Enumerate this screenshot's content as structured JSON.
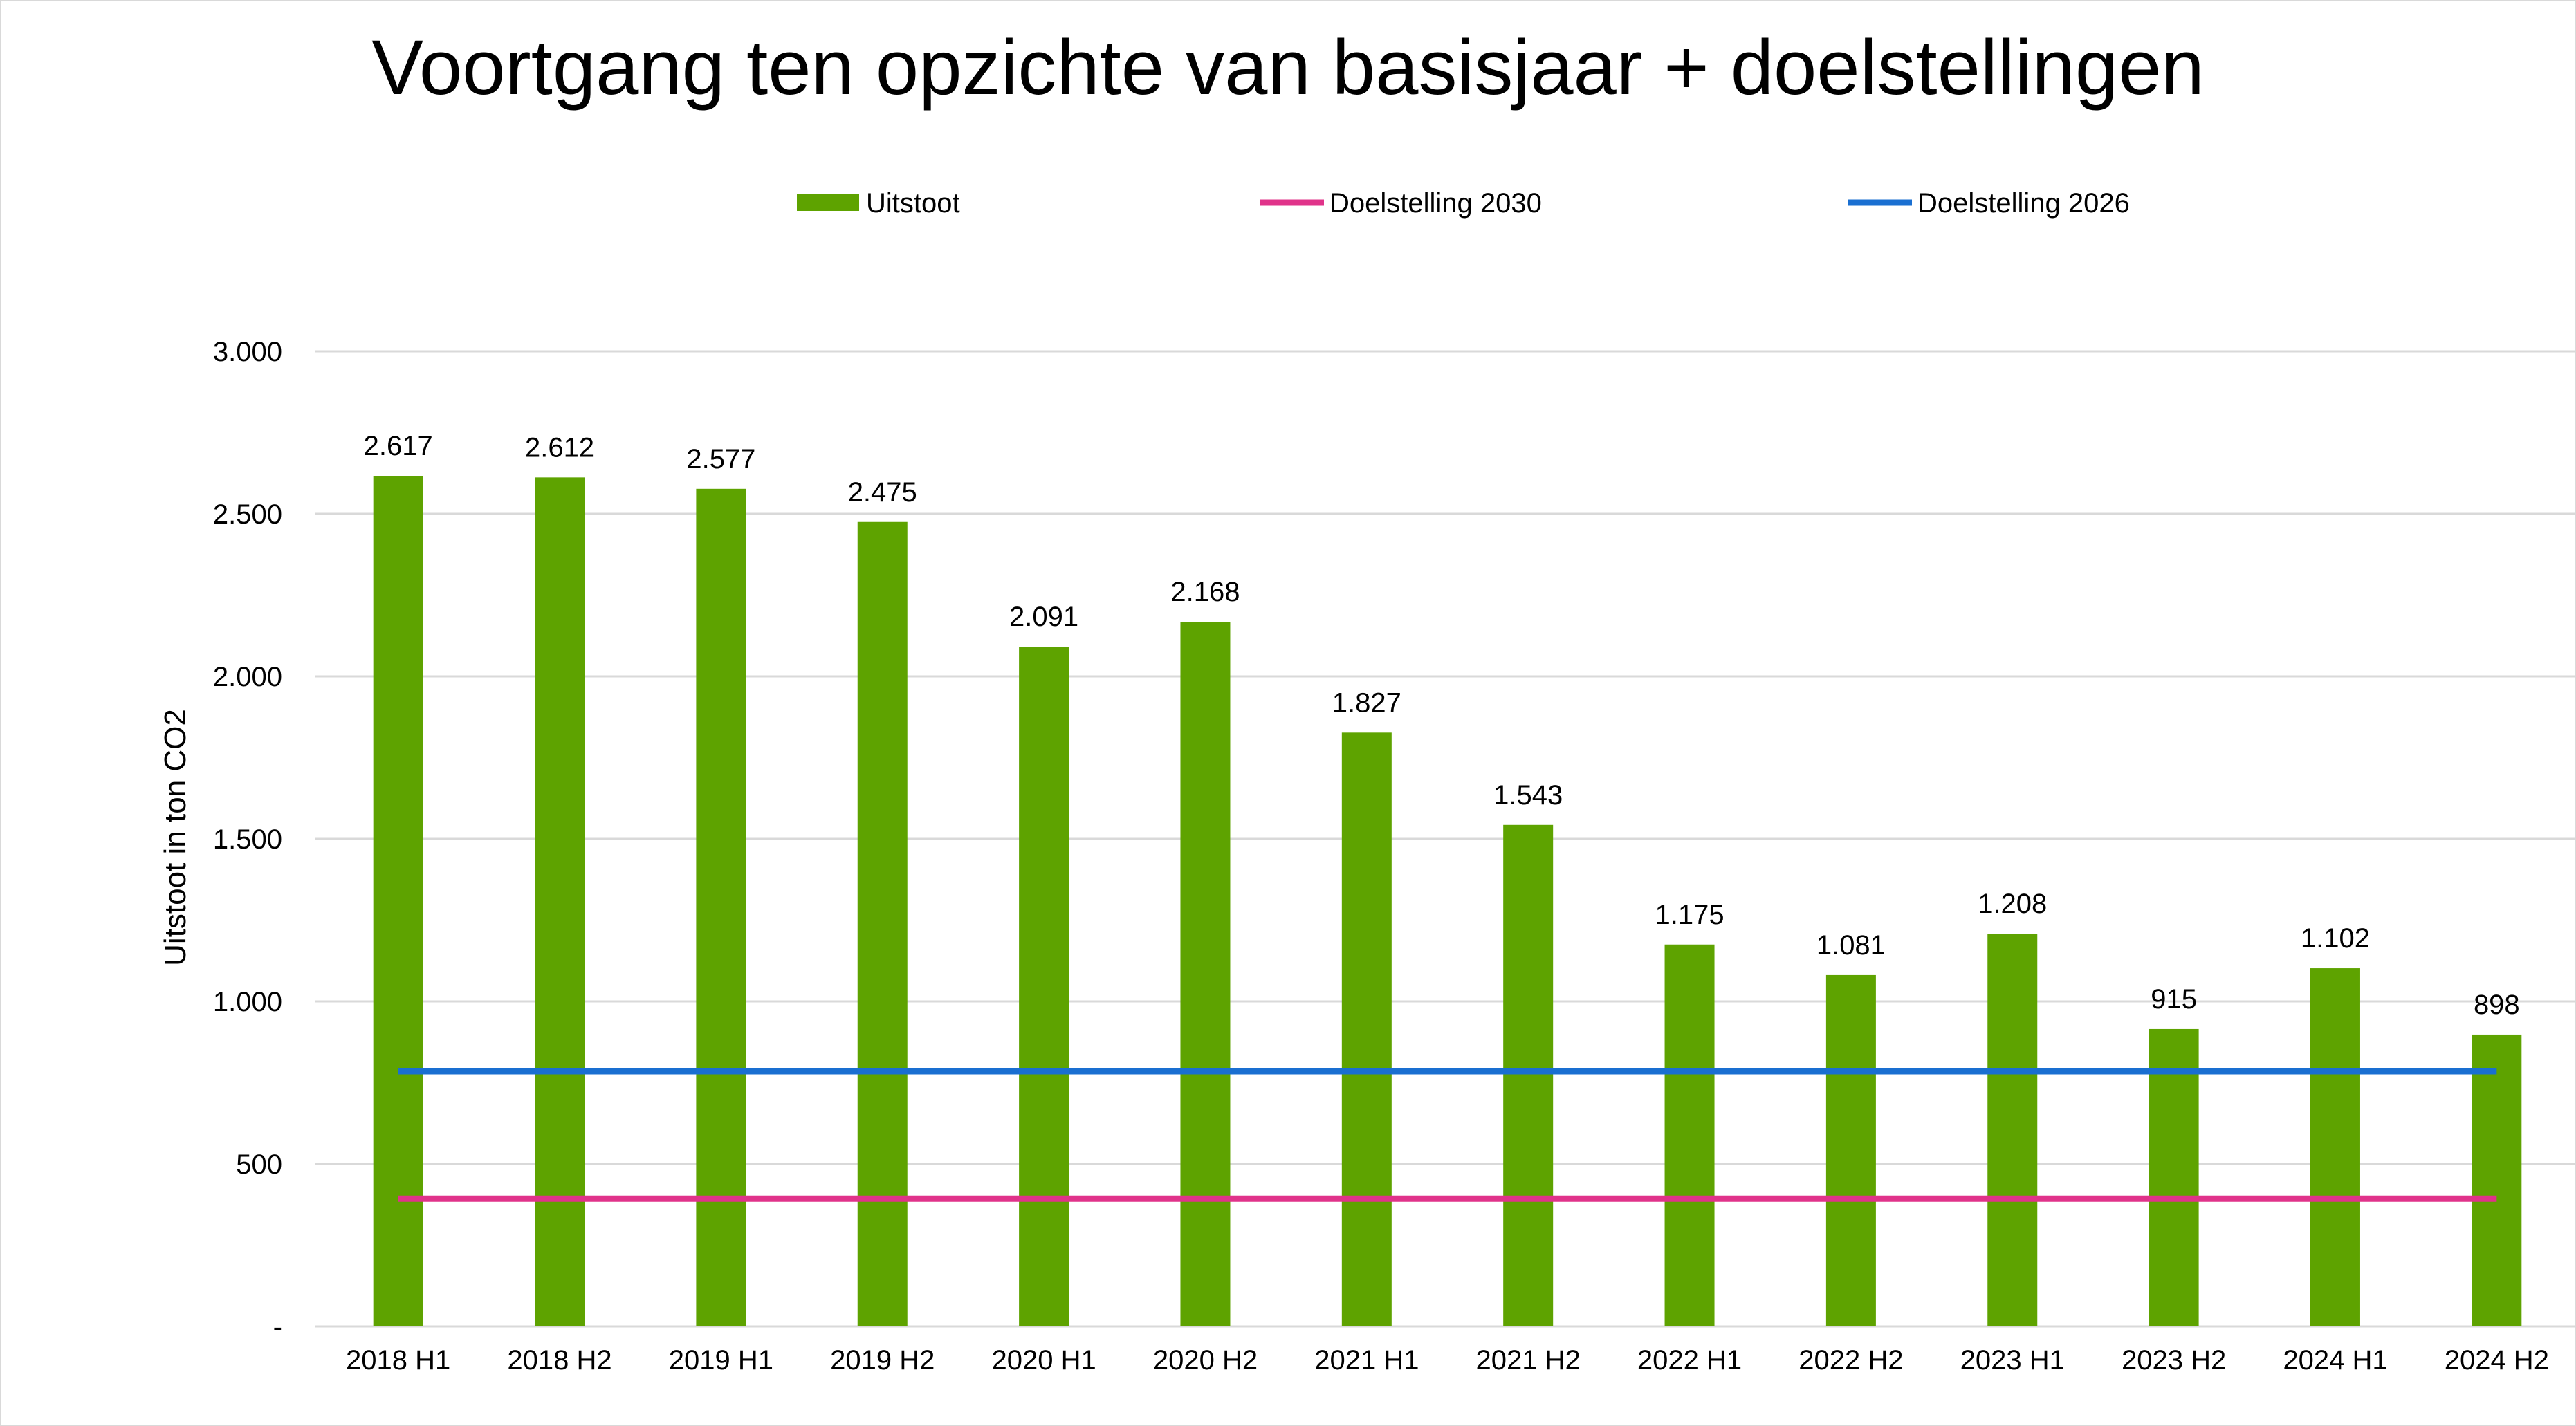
{
  "chart_data": {
    "type": "bar",
    "title": "Voortgang ten opzichte van basisjaar + doelstellingen",
    "xlabel": "",
    "ylabel": "Uitstoot in ton CO2",
    "ylim": [
      0,
      3000
    ],
    "yticks": [
      0,
      500,
      1000,
      1500,
      2000,
      2500,
      3000
    ],
    "ytick_labels": [
      "-",
      "500",
      "1.000",
      "1.500",
      "2.000",
      "2.500",
      "3.000"
    ],
    "grid": true,
    "legend_position": "top",
    "categories": [
      "2018 H1",
      "2018 H2",
      "2019 H1",
      "2019 H2",
      "2020 H1",
      "2020 H2",
      "2021 H1",
      "2021 H2",
      "2022 H1",
      "2022 H2",
      "2023 H1",
      "2023 H2",
      "2024 H1",
      "2024 H2"
    ],
    "series": [
      {
        "name": "Uitstoot",
        "type": "bar",
        "color": "#5ea300",
        "values": [
          2617,
          2612,
          2577,
          2475,
          2091,
          2168,
          1827,
          1543,
          1175,
          1081,
          1208,
          915,
          1102,
          898
        ],
        "labels": [
          "2.617",
          "2.612",
          "2.577",
          "2.475",
          "2.091",
          "2.168",
          "1.827",
          "1.543",
          "1.175",
          "1.081",
          "1.208",
          "915",
          "1.102",
          "898"
        ]
      },
      {
        "name": "Doelstelling 2030",
        "type": "line",
        "color": "#e0338a",
        "values": [
          393,
          393,
          393,
          393,
          393,
          393,
          393,
          393,
          393,
          393,
          393,
          393,
          393,
          393
        ]
      },
      {
        "name": "Doelstelling 2026",
        "type": "line",
        "color": "#1a6fd1",
        "values": [
          785,
          785,
          785,
          785,
          785,
          785,
          785,
          785,
          785,
          785,
          785,
          785,
          785,
          785
        ]
      }
    ]
  }
}
